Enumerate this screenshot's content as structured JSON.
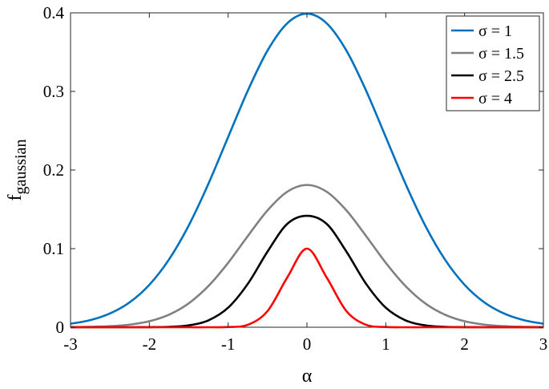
{
  "chart_data": {
    "type": "line",
    "title": "",
    "xlabel": "α",
    "ylabel": "f",
    "ylabel_subscript": "gaussian",
    "xlim": [
      -3,
      3
    ],
    "ylim": [
      0,
      0.4
    ],
    "xticks": [
      -3,
      -2,
      -1,
      0,
      1,
      2,
      3
    ],
    "xtick_labels": [
      "-3",
      "-2",
      "-1",
      "0",
      "1",
      "2",
      "3"
    ],
    "yticks": [
      0,
      0.1,
      0.2,
      0.3,
      0.4
    ],
    "ytick_labels": [
      "0",
      "0.1",
      "0.2",
      "0.3",
      "0.4"
    ],
    "grid": false,
    "legend_position": "top-right",
    "x": [
      -3.0,
      -2.75,
      -2.5,
      -2.25,
      -2.0,
      -1.75,
      -1.5,
      -1.25,
      -1.0,
      -0.75,
      -0.5,
      -0.25,
      0.0,
      0.25,
      0.5,
      0.75,
      1.0,
      1.25,
      1.5,
      1.75,
      2.0,
      2.25,
      2.5,
      2.75,
      3.0
    ],
    "series": [
      {
        "name": "σ = 1",
        "color": "#0072BD",
        "values": [
          0.0044,
          0.0091,
          0.0175,
          0.0317,
          0.054,
          0.0863,
          0.1295,
          0.1826,
          0.242,
          0.3011,
          0.3521,
          0.3867,
          0.3989,
          0.3867,
          0.3521,
          0.3011,
          0.242,
          0.1826,
          0.1295,
          0.0863,
          0.054,
          0.0317,
          0.0175,
          0.0091,
          0.0044
        ]
      },
      {
        "name": "σ = 1.5",
        "color": "#808080",
        "values": [
          0.0001,
          0.0005,
          0.0013,
          0.0033,
          0.0076,
          0.016,
          0.0304,
          0.0525,
          0.082,
          0.1161,
          0.1487,
          0.1724,
          0.181,
          0.1724,
          0.1487,
          0.1161,
          0.082,
          0.0525,
          0.0304,
          0.016,
          0.0076,
          0.0033,
          0.0013,
          0.0005,
          0.0001
        ]
      },
      {
        "name": "σ = 2.5",
        "color": "#000000",
        "values": [
          0.0,
          0.0,
          0.0,
          0.0,
          0.0001,
          0.0005,
          0.0024,
          0.0088,
          0.0249,
          0.0553,
          0.0963,
          0.1315,
          0.1418,
          0.1315,
          0.0963,
          0.0553,
          0.0249,
          0.0088,
          0.0024,
          0.0005,
          0.0001,
          0.0,
          0.0,
          0.0,
          0.0
        ]
      },
      {
        "name": "σ = 4",
        "color": "#FF0000",
        "values": [
          0.0,
          0.0,
          0.0,
          0.0,
          0.0,
          0.0,
          0.0,
          0.0,
          0.0003,
          0.0031,
          0.0206,
          0.0633,
          0.1,
          0.0633,
          0.0206,
          0.0031,
          0.0003,
          0.0,
          0.0,
          0.0,
          0.0,
          0.0,
          0.0,
          0.0,
          0.0
        ]
      }
    ]
  }
}
